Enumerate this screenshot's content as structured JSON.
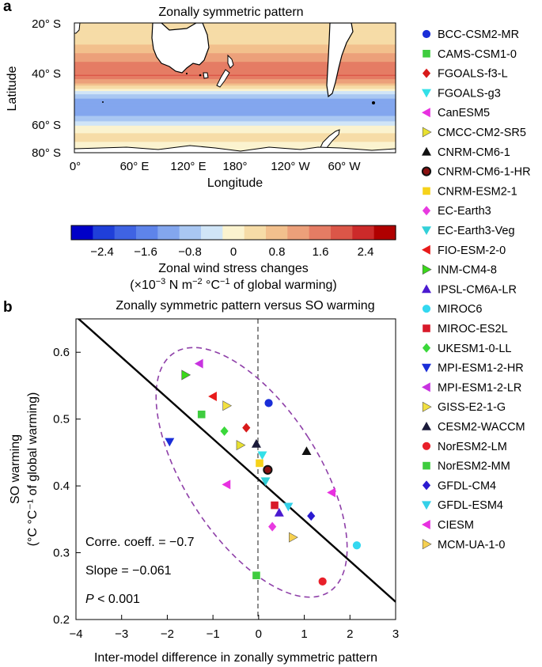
{
  "panel_a": {
    "letter": "a",
    "chart_data": {
      "type": "heatmap",
      "title": "Zonally symmetric pattern",
      "xlabel": "Longitude",
      "ylabel": "Latitude",
      "x_ticks": [
        "0°",
        "60° E",
        "120° E",
        "180°",
        "120° W",
        "60° W"
      ],
      "y_ticks": [
        "20° S",
        "40° S",
        "60° S",
        "80° S"
      ],
      "colorbar": {
        "label_line1": "Zonal wind stress changes",
        "label_line2_prefix": "(×10",
        "label_line2_exp1": "−3",
        "label_line2_mid": " N m",
        "label_line2_exp2": "−2",
        "label_line2_suffix": " °C",
        "label_line2_exp3": "−1",
        "label_line2_end": " of global warming)",
        "tick_labels": [
          "−2.4",
          "−1.6",
          "−0.8",
          "0",
          "0.8",
          "1.6",
          "2.4"
        ],
        "levels": [
          -3.0,
          -2.6,
          -2.2,
          -1.8,
          -1.4,
          -1.0,
          -0.6,
          -0.2,
          0.2,
          0.6,
          1.0,
          1.4,
          1.8,
          2.2,
          2.6,
          3.0
        ],
        "colors": [
          "#0000c8",
          "#1f3fd9",
          "#3f63e3",
          "#5e84ea",
          "#83a6ee",
          "#a9c7f2",
          "#d0e5f7",
          "#fbf3cf",
          "#f6dca7",
          "#f2c08d",
          "#eca07a",
          "#e57c64",
          "#db5648",
          "#cc2a2a",
          "#b00000"
        ]
      },
      "zonal_profile": [
        {
          "lat": 20,
          "value": 0.3
        },
        {
          "lat": 30,
          "value": 0.6
        },
        {
          "lat": 38,
          "value": 1.4
        },
        {
          "lat": 44,
          "value": 1.8
        },
        {
          "lat": 48,
          "value": 0.9
        },
        {
          "lat": 52,
          "value": -0.5
        },
        {
          "lat": 56,
          "value": -1.3
        },
        {
          "lat": 60,
          "value": -1.2
        },
        {
          "lat": 64,
          "value": -0.9
        },
        {
          "lat": 68,
          "value": 0.0
        },
        {
          "lat": 72,
          "value": 0.3
        },
        {
          "lat": 80,
          "value": 0.0
        }
      ]
    }
  },
  "panel_b": {
    "letter": "b",
    "chart_data": {
      "type": "scatter",
      "title": "Zonally symmetric pattern versus SO warming",
      "xlabel": "Inter-model difference in zonally symmetric pattern",
      "ylabel_line1": "SO warming",
      "ylabel_line2": "(°C °C⁻¹ of global warming)",
      "xlim": [
        -4,
        3
      ],
      "ylim": [
        0.2,
        0.65
      ],
      "x_ticks": [
        "−4",
        "−3",
        "−2",
        "−1",
        "0",
        "1",
        "2",
        "3"
      ],
      "y_ticks": [
        "0.2",
        "0.3",
        "0.4",
        "0.5",
        "0.6"
      ],
      "regression": {
        "slope": -0.061,
        "intercept": 0.4095
      },
      "annotations": {
        "corr": "Corre. coeff. = −0.7",
        "slope": "Slope = −0.061",
        "p_symbol": "P",
        "p_rest": " < 0.001"
      },
      "series": [
        {
          "name": "BCC-CSM2-MR",
          "marker": "circle",
          "color": "#1a2ed8",
          "x": 0.22,
          "y": 0.524
        },
        {
          "name": "CAMS-CSM1-0",
          "marker": "square",
          "color": "#3fcc3f",
          "x": -1.25,
          "y": 0.507
        },
        {
          "name": "FGOALS-f3-L",
          "marker": "diamond",
          "color": "#d81a1a",
          "x": -0.27,
          "y": 0.487
        },
        {
          "name": "FGOALS-g3",
          "marker": "tri-down",
          "color": "#33e0e8",
          "x": 0.08,
          "y": 0.446
        },
        {
          "name": "CanESM5",
          "marker": "tri-left",
          "color": "#e830e0",
          "x": -0.7,
          "y": 0.402
        },
        {
          "name": "CMCC-CM2-SR5",
          "marker": "tri-right",
          "color": "#e8e030",
          "x": -0.4,
          "y": 0.461
        },
        {
          "name": "CNRM-CM6-1",
          "marker": "tri-up",
          "color": "#111111",
          "x": 1.05,
          "y": 0.452
        },
        {
          "name": "CNRM-CM6-1-HR",
          "marker": "circle-dark",
          "color": "#111111",
          "x": 0.2,
          "y": 0.424
        },
        {
          "name": "CNRM-ESM2-1",
          "marker": "square",
          "color": "#f6d21a",
          "x": 0.02,
          "y": 0.434
        },
        {
          "name": "EC-Earth3",
          "marker": "diamond",
          "color": "#e83ae0",
          "x": 0.3,
          "y": 0.339
        },
        {
          "name": "EC-Earth3-Veg",
          "marker": "tri-down",
          "color": "#33d0d8",
          "x": 0.15,
          "y": 0.407
        },
        {
          "name": "FIO-ESM-2-0",
          "marker": "tri-left",
          "color": "#e81a1a",
          "x": -1.0,
          "y": 0.534
        },
        {
          "name": "INM-CM4-8",
          "marker": "tri-right",
          "color": "#3ad81a",
          "x": -1.6,
          "y": 0.566
        },
        {
          "name": "IPSL-CM6A-LR",
          "marker": "tri-up",
          "color": "#4a1ad0",
          "x": 0.45,
          "y": 0.36
        },
        {
          "name": "MIROC6",
          "marker": "circle",
          "color": "#33d8f0",
          "x": 2.15,
          "y": 0.311
        },
        {
          "name": "MIROC-ES2L",
          "marker": "square",
          "color": "#d81a2a",
          "x": 0.35,
          "y": 0.371
        },
        {
          "name": "UKESM1-0-LL",
          "marker": "diamond",
          "color": "#3ad83a",
          "x": -0.75,
          "y": 0.482
        },
        {
          "name": "MPI-ESM1-2-HR",
          "marker": "tri-down",
          "color": "#1a2ed8",
          "x": -1.95,
          "y": 0.466
        },
        {
          "name": "MPI-ESM1-2-LR",
          "marker": "tri-left",
          "color": "#c833e0",
          "x": -1.3,
          "y": 0.583
        },
        {
          "name": "GISS-E2-1-G",
          "marker": "tri-right",
          "color": "#f2e040",
          "x": -0.7,
          "y": 0.52
        },
        {
          "name": "CESM2-WACCM",
          "marker": "tri-up",
          "color": "#1a1a3a",
          "x": -0.05,
          "y": 0.463
        },
        {
          "name": "NorESM2-LM",
          "marker": "circle",
          "color": "#e8202a",
          "x": 1.4,
          "y": 0.257
        },
        {
          "name": "NorESM2-MM",
          "marker": "square",
          "color": "#3fcc3f",
          "x": -0.05,
          "y": 0.266
        },
        {
          "name": "GFDL-CM4",
          "marker": "diamond",
          "color": "#2a1ad0",
          "x": 1.15,
          "y": 0.355
        },
        {
          "name": "GFDL-ESM4",
          "marker": "tri-down",
          "color": "#33d0e8",
          "x": 0.65,
          "y": 0.369
        },
        {
          "name": "CIESM",
          "marker": "tri-left",
          "color": "#e830e0",
          "x": 1.6,
          "y": 0.39
        },
        {
          "name": "MCM-UA-1-0",
          "marker": "tri-right",
          "color": "#f6d050",
          "x": 0.75,
          "y": 0.323
        }
      ]
    }
  }
}
